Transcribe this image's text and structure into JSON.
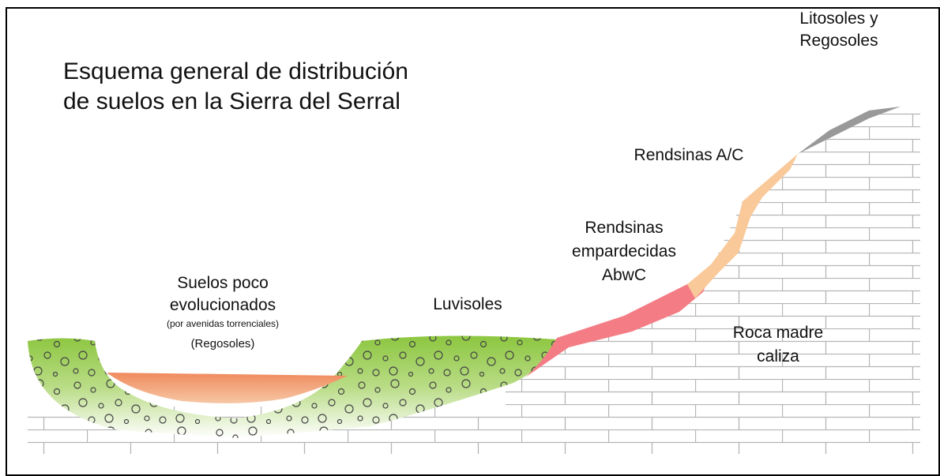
{
  "title": {
    "lines": [
      "Esquema general de distribución",
      "de suelos en la Sierra del Serral"
    ]
  },
  "labels": [
    {
      "lines": [
        "Litosoles y",
        "Regosoles"
      ]
    },
    {
      "lines": [
        "Rendsinas A/C"
      ]
    },
    {
      "lines": [
        "Rendsinas",
        "empardecidas",
        "AbwC"
      ]
    },
    {
      "lines": [
        "Suelos poco",
        "evolucionados",
        "(por avenidas torrenciales)",
        "(Regosoles)"
      ]
    },
    {
      "lines": [
        "Luvisoles"
      ]
    },
    {
      "lines": [
        "Roca madre",
        "caliza"
      ]
    }
  ]
}
